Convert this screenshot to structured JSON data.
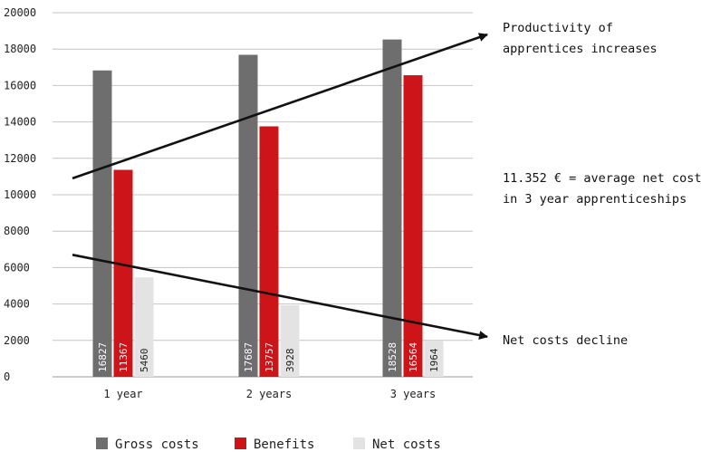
{
  "chart_data": {
    "type": "bar",
    "categories": [
      "1 year",
      "2 years",
      "3 years"
    ],
    "series": [
      {
        "name": "Gross costs",
        "values": [
          16827,
          17687,
          18528
        ],
        "color": "#6e6e6e"
      },
      {
        "name": "Benefits",
        "values": [
          11367,
          13757,
          16564
        ],
        "color": "#cc1419"
      },
      {
        "name": "Net costs",
        "values": [
          5460,
          3928,
          1964
        ],
        "color": "#e3e3e3"
      }
    ],
    "y_ticks": [
      "0",
      "2000",
      "4000",
      "6000",
      "8000",
      "10000",
      "12000",
      "14000",
      "16000",
      "18000",
      "20000"
    ],
    "ylim": [
      0,
      20000
    ],
    "grid": true,
    "legend_position": "bottom",
    "annotations": {
      "productivity": [
        "Productivity of",
        "apprentices increases"
      ],
      "average": [
        "11.352 € = average net costs",
        "in 3 year apprenticeships"
      ],
      "decline": [
        "Net costs decline"
      ]
    },
    "arrows": [
      {
        "name": "productivity-arrow",
        "from": {
          "category": "1 year",
          "value": 10900
        },
        "to": {
          "category": "beyond 3 years",
          "value": 18800
        }
      },
      {
        "name": "decline-arrow",
        "from": {
          "category": "1 year",
          "value": 6700
        },
        "to": {
          "category": "beyond 3 years",
          "value": 2200
        }
      }
    ]
  }
}
